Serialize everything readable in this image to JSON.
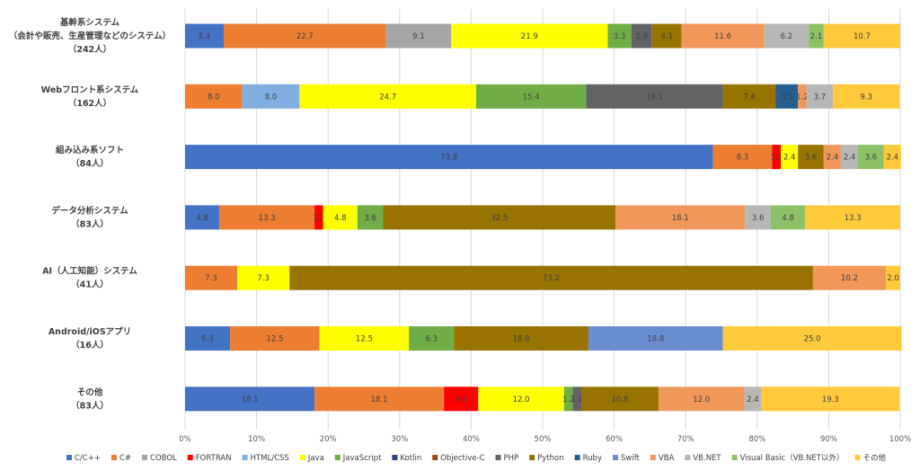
{
  "chart_data": {
    "type": "bar",
    "orientation": "horizontal",
    "stacked": "percent",
    "categories": [
      [
        "基幹系システム",
        "（会計や販売、生産管理などのシステム）",
        "（242人）"
      ],
      [
        "Webフロント系システム",
        "（162人）"
      ],
      [
        "組み込み系ソフト",
        "（84人）"
      ],
      [
        "データ分析システム",
        "（83人）"
      ],
      [
        "AI（人工知能）システム",
        "（41人）"
      ],
      [
        "Android/iOSアプリ",
        "（16人）"
      ],
      [
        "その他",
        "（83人）"
      ]
    ],
    "xlim": [
      0,
      100
    ],
    "xticks": [
      "0%",
      "10%",
      "20%",
      "30%",
      "40%",
      "50%",
      "60%",
      "70%",
      "80%",
      "90%",
      "100%"
    ],
    "grid": true,
    "legend_position": "bottom",
    "series": [
      {
        "name": "C/C++",
        "color": "#4472C4",
        "values": [
          5.4,
          null,
          73.8,
          4.8,
          null,
          6.3,
          18.1
        ]
      },
      {
        "name": "C#",
        "color": "#ED7D31",
        "values": [
          22.7,
          8.0,
          8.3,
          13.3,
          7.3,
          12.5,
          18.1
        ]
      },
      {
        "name": "COBOL",
        "color": "#A5A5A5",
        "values": [
          9.1,
          null,
          null,
          null,
          null,
          null,
          null
        ]
      },
      {
        "name": "FORTRAN",
        "color": "#FF0000",
        "values": [
          null,
          null,
          1.2,
          1.2,
          null,
          null,
          4.8
        ]
      },
      {
        "name": "HTML/CSS",
        "color": "#7FAFE0",
        "values": [
          null,
          8.0,
          null,
          null,
          null,
          null,
          null
        ]
      },
      {
        "name": "Java",
        "color": "#FFFF00",
        "values": [
          21.9,
          24.7,
          2.4,
          4.8,
          7.3,
          12.5,
          12.0
        ]
      },
      {
        "name": "JavaScript",
        "color": "#70AD47",
        "values": [
          3.3,
          15.4,
          null,
          3.6,
          null,
          6.3,
          1.2
        ]
      },
      {
        "name": "Kotlin",
        "color": "#264478",
        "values": [
          null,
          null,
          null,
          null,
          null,
          null,
          null
        ]
      },
      {
        "name": "Objective-C",
        "color": "#9E480E",
        "values": [
          null,
          null,
          null,
          null,
          null,
          null,
          null
        ]
      },
      {
        "name": "PHP",
        "color": "#636363",
        "values": [
          2.9,
          19.1,
          null,
          null,
          null,
          null,
          1.2
        ]
      },
      {
        "name": "Python",
        "color": "#997300",
        "values": [
          4.1,
          7.4,
          3.6,
          32.5,
          73.2,
          18.8,
          10.8
        ]
      },
      {
        "name": "Ruby",
        "color": "#255E91",
        "values": [
          null,
          3.1,
          null,
          null,
          null,
          null,
          null
        ]
      },
      {
        "name": "Swift",
        "color": "#698ED0",
        "values": [
          null,
          null,
          null,
          null,
          null,
          18.8,
          null
        ]
      },
      {
        "name": "VBA",
        "color": "#F1975A",
        "values": [
          11.6,
          1.2,
          2.4,
          18.1,
          10.2,
          null,
          12.0
        ]
      },
      {
        "name": "VB.NET",
        "color": "#B7B7B7",
        "values": [
          6.2,
          3.7,
          2.4,
          3.6,
          null,
          null,
          2.4
        ]
      },
      {
        "name": "Visual Basic（VB.NET以外）",
        "color": "#8CC168",
        "values": [
          2.1,
          null,
          3.6,
          4.8,
          null,
          null,
          null
        ]
      },
      {
        "name": "その他",
        "color": "#FFC939",
        "values": [
          10.7,
          9.3,
          2.4,
          13.3,
          2.0,
          25.0,
          19.3
        ]
      }
    ]
  }
}
